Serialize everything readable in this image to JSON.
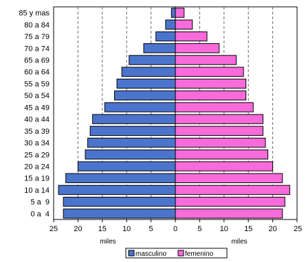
{
  "chart_data": {
    "type": "bar",
    "orientation": "horizontal",
    "layout": "population-pyramid",
    "categories": [
      "0 a  4",
      "5 a  9",
      "10 a 14",
      "15 a 19",
      "20 a 24",
      "25 a 29",
      "30 a 34",
      "35 a 39",
      "40 a 44",
      "45 a 49",
      "50 a 54",
      "55 a 59",
      "60 a 64",
      "65 a 69",
      "70 a 74",
      "75 a 79",
      "80 a 84",
      "85 y mas"
    ],
    "series": [
      {
        "name": "masculino",
        "color": "#4B74CC",
        "values": [
          23.0,
          23.0,
          24.0,
          22.5,
          20.0,
          18.5,
          18.0,
          17.5,
          17.0,
          14.5,
          12.5,
          12.0,
          11.0,
          9.5,
          6.5,
          4.0,
          2.0,
          0.8
        ]
      },
      {
        "name": "femenino",
        "color": "#F76BDA",
        "values": [
          22.0,
          22.5,
          23.5,
          22.0,
          20.0,
          19.0,
          18.5,
          18.0,
          18.0,
          16.0,
          14.5,
          14.5,
          14.0,
          12.5,
          9.0,
          6.5,
          3.5,
          1.8
        ]
      }
    ],
    "xlabel_left": "miles",
    "xlabel_right": "miles",
    "xlim": [
      0,
      25
    ],
    "ticks_left": [
      "25",
      "20",
      "15",
      "10",
      "5",
      "0"
    ],
    "ticks_right": [
      "0",
      "5",
      "10",
      "15",
      "20",
      "25"
    ],
    "grid": "vertical-dashed",
    "legend_position": "bottom-center"
  }
}
